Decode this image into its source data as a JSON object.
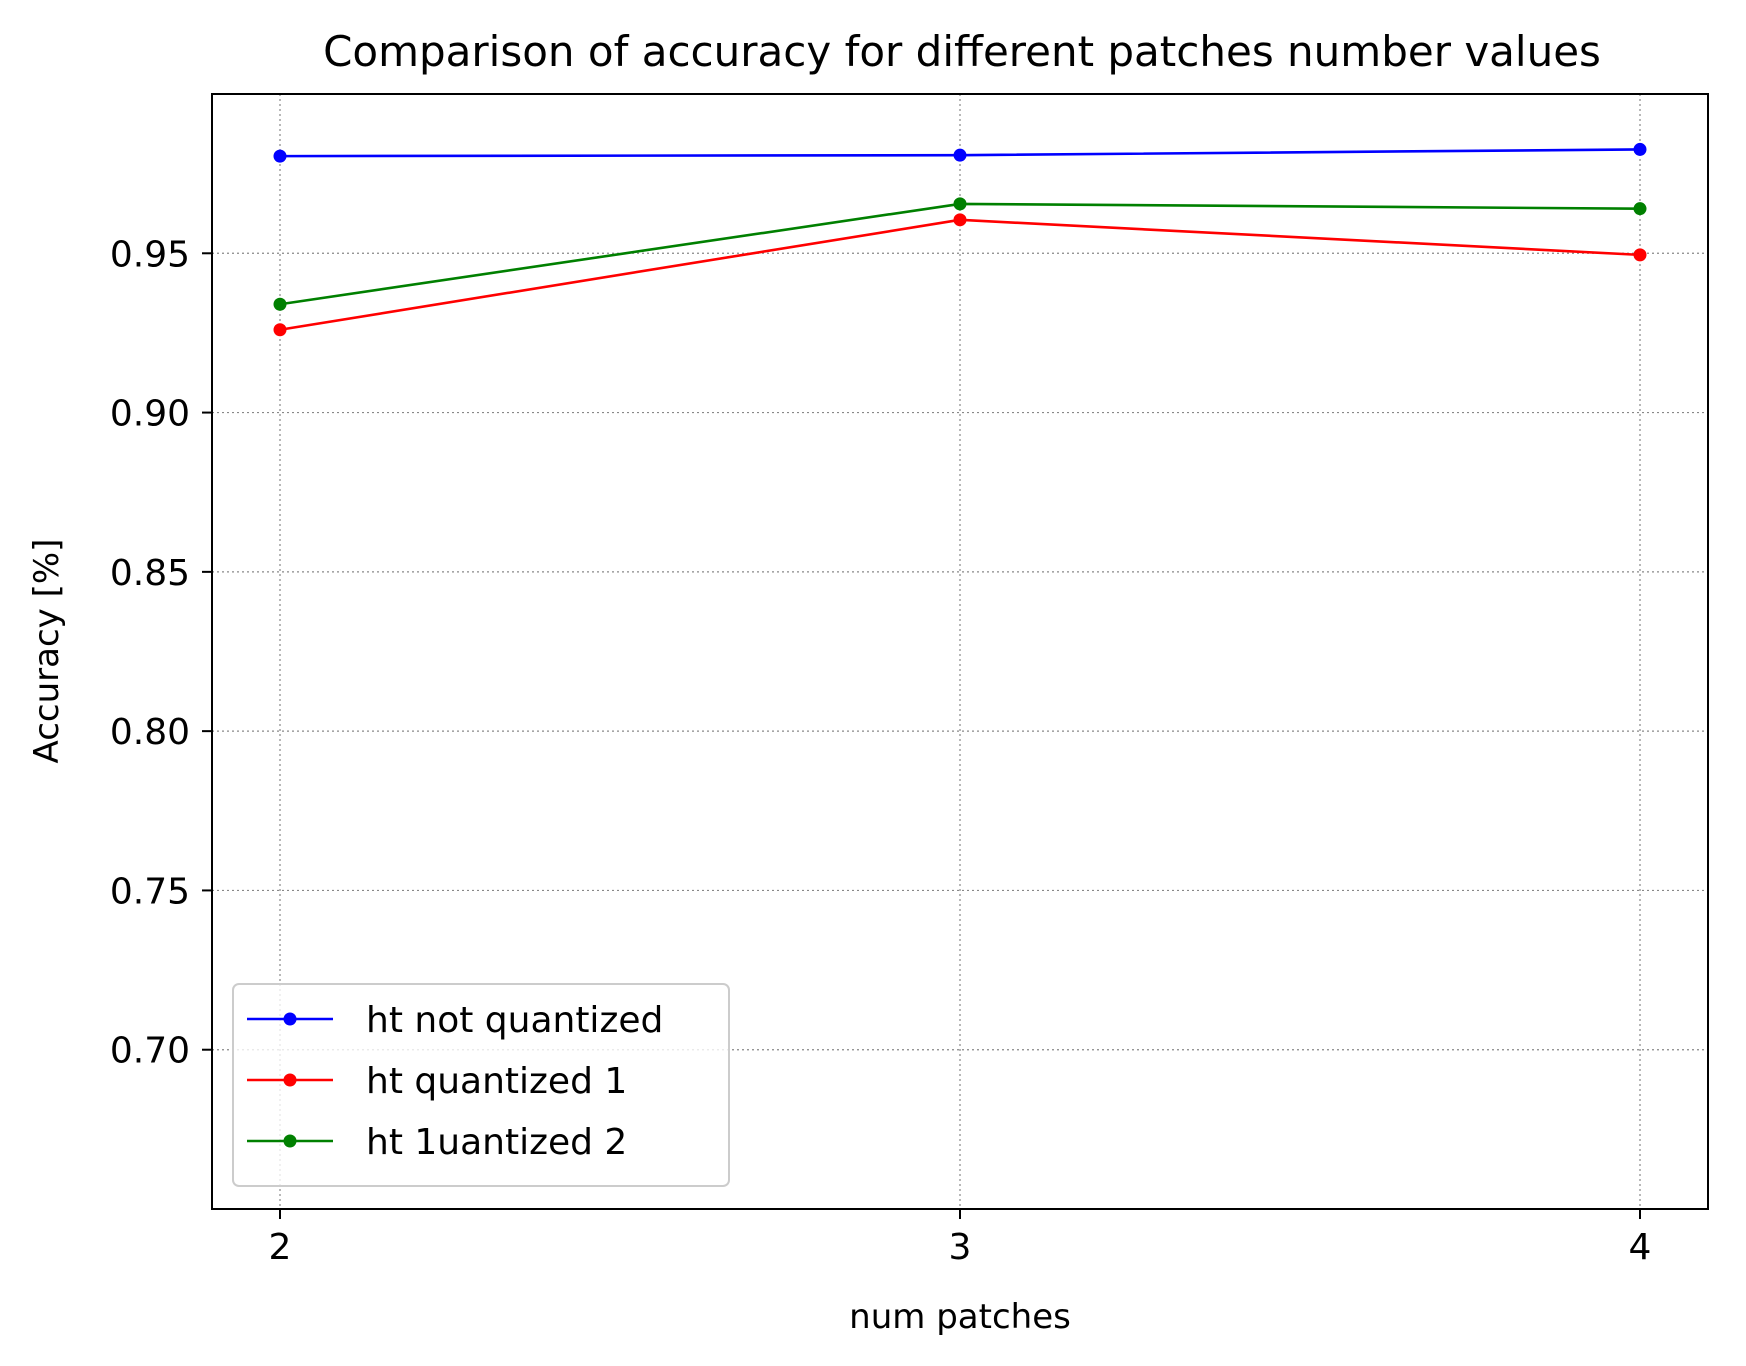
{
  "chart_data": {
    "type": "line",
    "title": "Comparison of accuracy for different patches number values",
    "xlabel": "num patches",
    "ylabel": "Accuracy [%]",
    "x": [
      2,
      3,
      4
    ],
    "x_ticks": [
      "2",
      "3",
      "4"
    ],
    "xlim": [
      1.9,
      4.1
    ],
    "y_ticks": [
      "0.70",
      "0.75",
      "0.80",
      "0.85",
      "0.90",
      "0.95"
    ],
    "y_tick_values": [
      0.7,
      0.75,
      0.8,
      0.85,
      0.9,
      0.95
    ],
    "ylim": [
      0.65,
      1.0
    ],
    "grid": true,
    "legend_position": "lower-left",
    "series": [
      {
        "name": "ht not quantized",
        "color": "#0000ff",
        "marker": "circle",
        "values": [
          0.9805,
          0.9808,
          0.9826
        ]
      },
      {
        "name": "ht quantized 1",
        "color": "#ff0000",
        "marker": "circle",
        "values": [
          0.926,
          0.9605,
          0.9495
        ]
      },
      {
        "name": "ht 1uantized 2",
        "color": "#008000",
        "marker": "circle",
        "values": [
          0.934,
          0.9655,
          0.964
        ]
      }
    ]
  }
}
